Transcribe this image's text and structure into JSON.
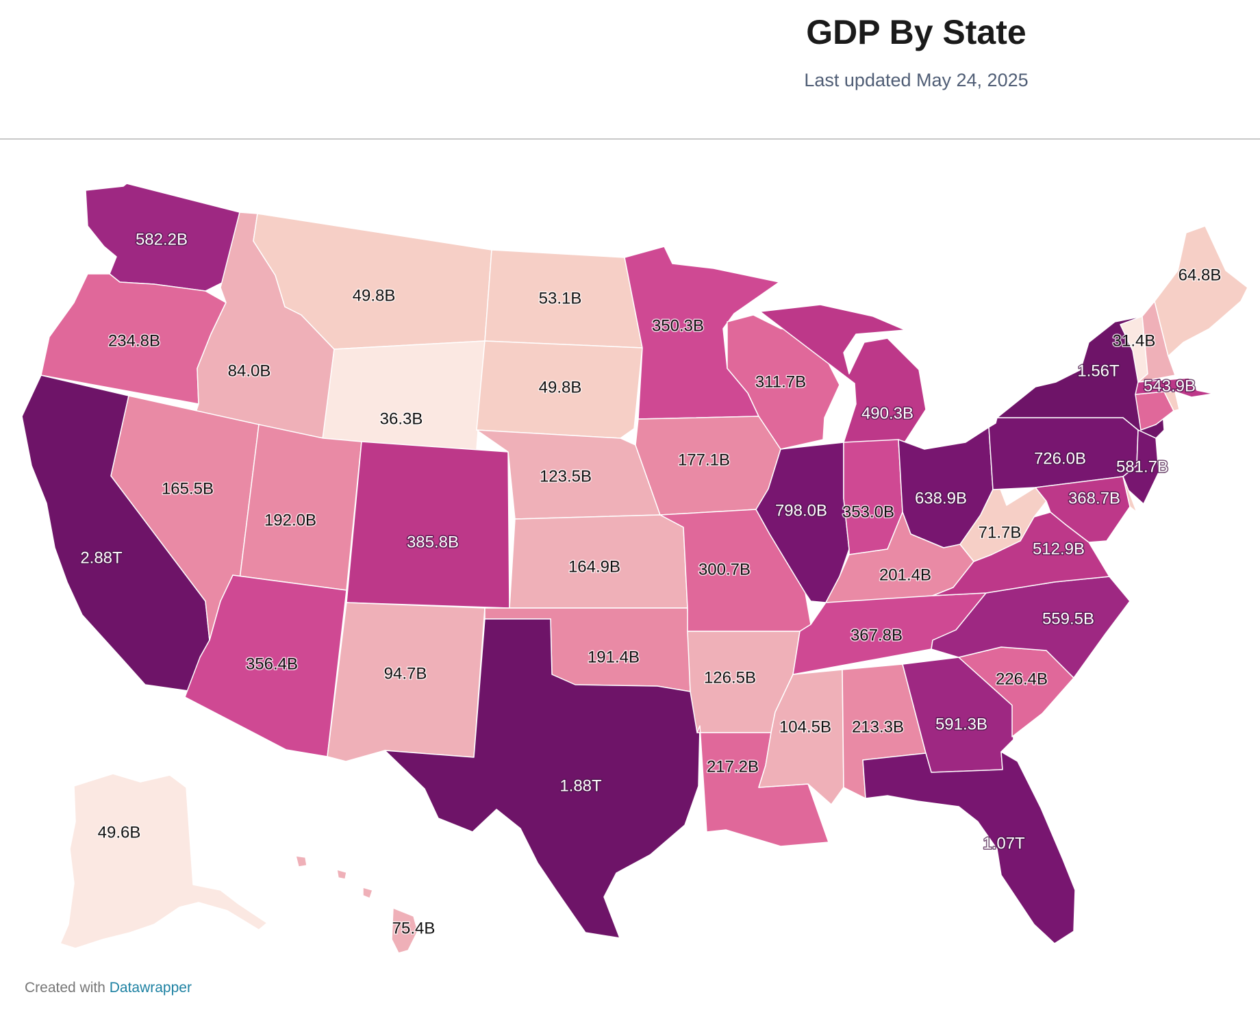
{
  "title": "GDP By State",
  "subtitle": "Last updated May 24, 2025",
  "footer": {
    "prefix": "Created with",
    "link": "Datawrapper"
  },
  "chart_data": {
    "type": "choropleth",
    "color_scale": [
      "#fbe8e2",
      "#f6cfc6",
      "#efb0b8",
      "#e98aa5",
      "#e0689a",
      "#cf4993",
      "#bd3889",
      "#9e2882",
      "#781670",
      "#6e1468"
    ],
    "states": [
      {
        "id": "WA",
        "value": "582.2B"
      },
      {
        "id": "OR",
        "value": "234.8B"
      },
      {
        "id": "CA",
        "value": "2.88T"
      },
      {
        "id": "ID",
        "value": "84.0B"
      },
      {
        "id": "NV",
        "value": "165.5B"
      },
      {
        "id": "MT",
        "value": "49.8B"
      },
      {
        "id": "WY",
        "value": "36.3B"
      },
      {
        "id": "UT",
        "value": "192.0B"
      },
      {
        "id": "AZ",
        "value": "356.4B"
      },
      {
        "id": "CO",
        "value": "385.8B"
      },
      {
        "id": "NM",
        "value": "94.7B"
      },
      {
        "id": "ND",
        "value": "53.1B"
      },
      {
        "id": "SD",
        "value": "49.8B"
      },
      {
        "id": "NE",
        "value": "123.5B"
      },
      {
        "id": "KS",
        "value": "164.9B"
      },
      {
        "id": "OK",
        "value": "191.4B"
      },
      {
        "id": "TX",
        "value": "1.88T"
      },
      {
        "id": "MN",
        "value": "350.3B"
      },
      {
        "id": "IA",
        "value": "177.1B"
      },
      {
        "id": "MO",
        "value": "300.7B"
      },
      {
        "id": "AR",
        "value": "126.5B"
      },
      {
        "id": "LA",
        "value": "217.2B"
      },
      {
        "id": "WI",
        "value": "311.7B"
      },
      {
        "id": "IL",
        "value": "798.0B"
      },
      {
        "id": "MI",
        "value": "490.3B"
      },
      {
        "id": "IN",
        "value": "353.0B"
      },
      {
        "id": "OH",
        "value": "638.9B"
      },
      {
        "id": "KY",
        "value": "201.4B"
      },
      {
        "id": "TN",
        "value": "367.8B"
      },
      {
        "id": "MS",
        "value": "104.5B"
      },
      {
        "id": "AL",
        "value": "213.3B"
      },
      {
        "id": "GA",
        "value": "591.3B"
      },
      {
        "id": "FL",
        "value": "1.07T"
      },
      {
        "id": "SC",
        "value": "226.4B"
      },
      {
        "id": "NC",
        "value": "559.5B"
      },
      {
        "id": "VA",
        "value": "512.9B"
      },
      {
        "id": "WV",
        "value": "71.7B"
      },
      {
        "id": "PA",
        "value": "726.0B"
      },
      {
        "id": "NY",
        "value": "1.56T"
      },
      {
        "id": "NJ",
        "value": "581.7B"
      },
      {
        "id": "MD",
        "value": "368.7B"
      },
      {
        "id": "DE",
        "value": ""
      },
      {
        "id": "CT",
        "value": ""
      },
      {
        "id": "RI",
        "value": ""
      },
      {
        "id": "MA",
        "value": "543.9B"
      },
      {
        "id": "VT",
        "value": "31.4B"
      },
      {
        "id": "NH",
        "value": ""
      },
      {
        "id": "ME",
        "value": "64.8B"
      },
      {
        "id": "AK",
        "value": "49.6B"
      },
      {
        "id": "HI",
        "value": "75.4B"
      }
    ]
  }
}
